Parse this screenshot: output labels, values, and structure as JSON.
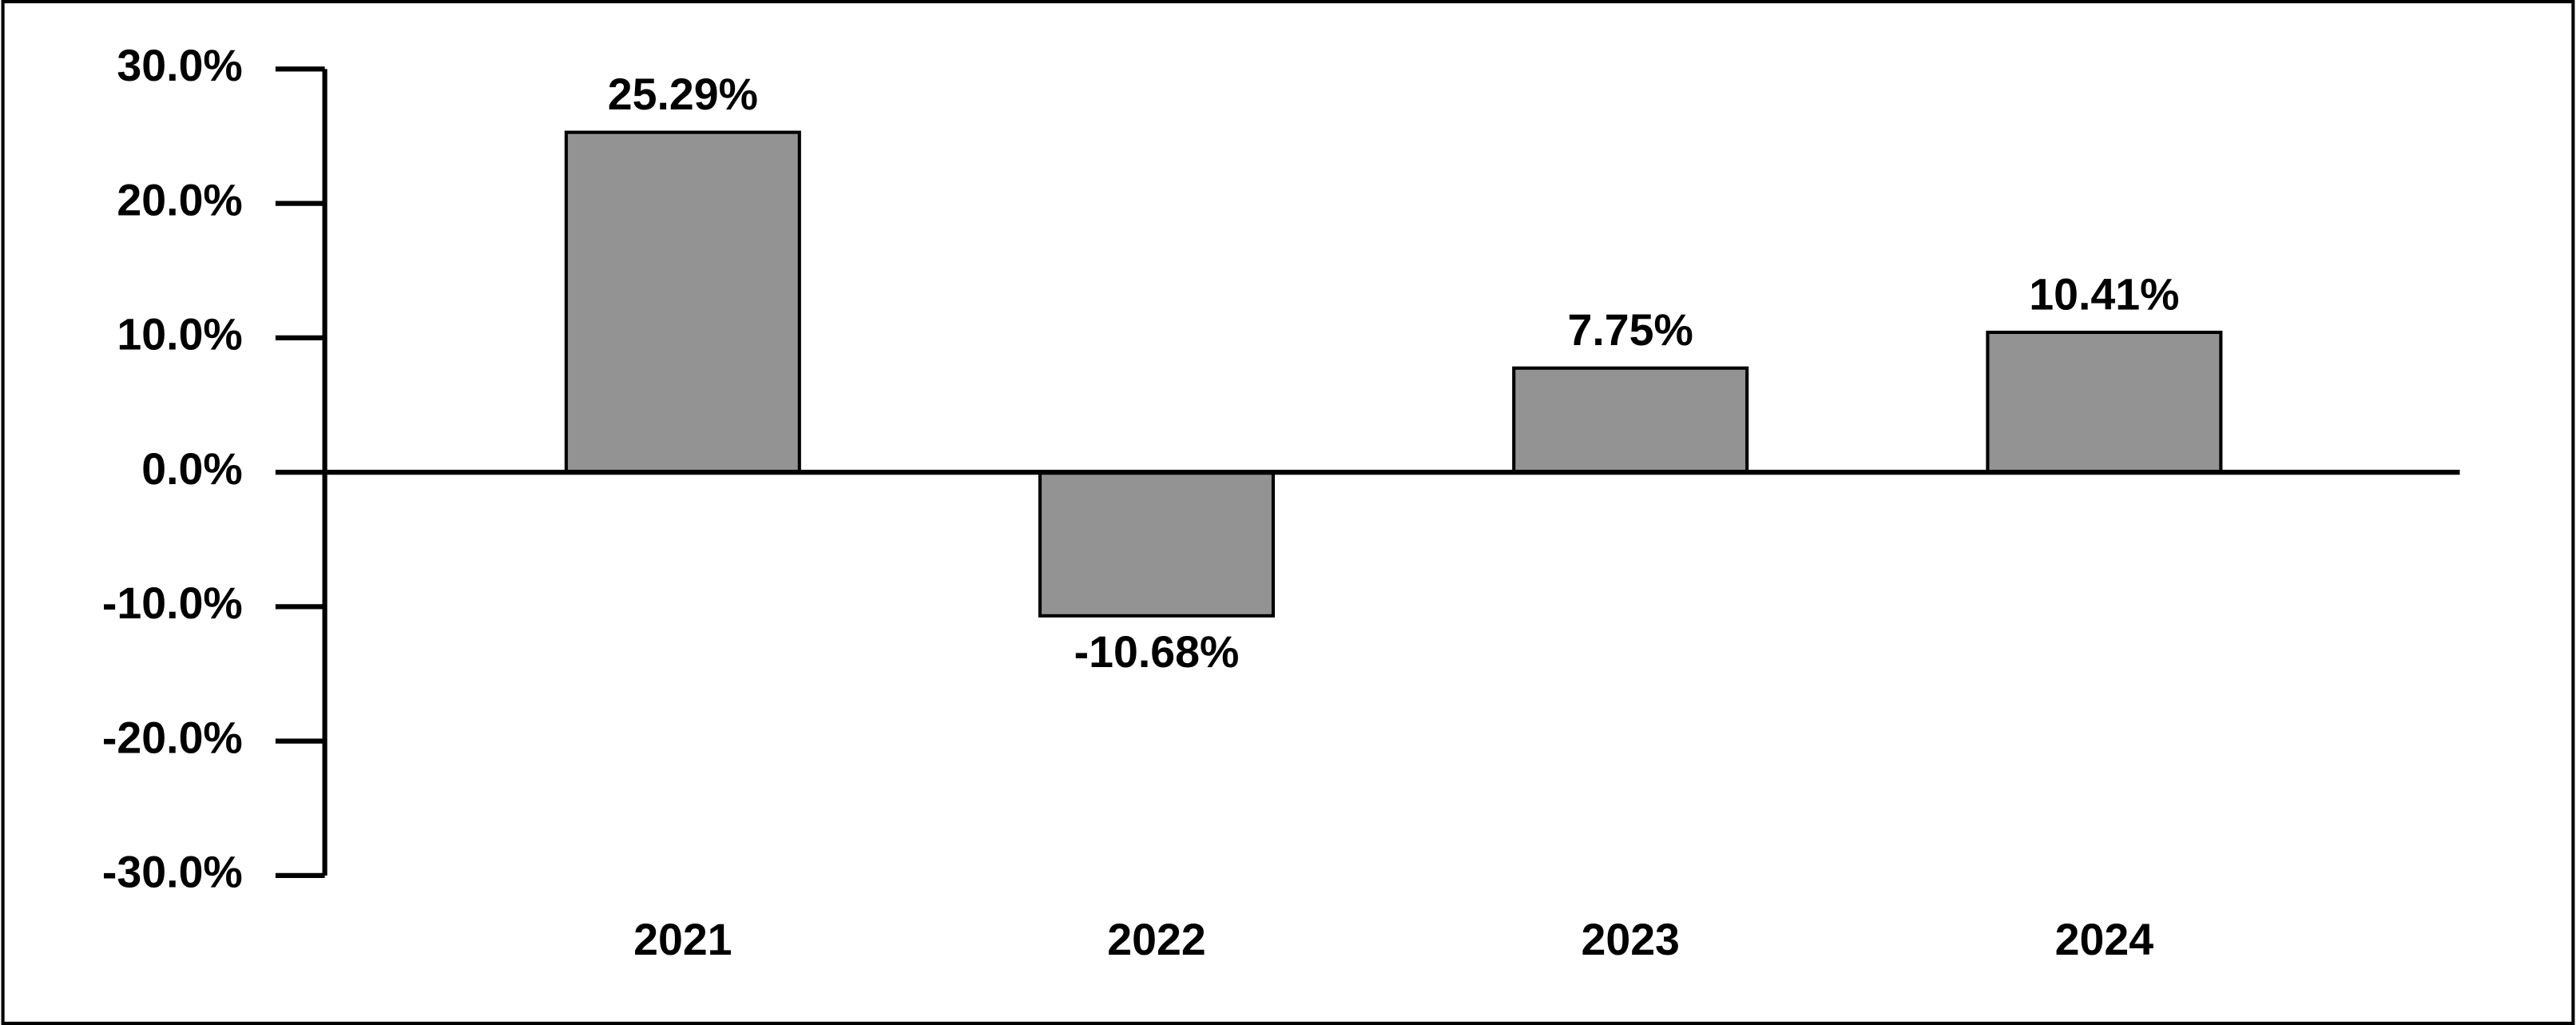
{
  "chart_data": {
    "type": "bar",
    "categories": [
      "2021",
      "2022",
      "2023",
      "2024"
    ],
    "values": [
      25.29,
      -10.68,
      7.75,
      10.41
    ],
    "value_labels": [
      "25.29%",
      "-10.68%",
      "7.75%",
      "10.41%"
    ],
    "color": "#939393",
    "ylim": [
      -30,
      30
    ],
    "yticks": [
      {
        "value": -30,
        "label": "-30.0%"
      },
      {
        "value": -20,
        "label": "-20.0%"
      },
      {
        "value": -10,
        "label": "-10.0%"
      },
      {
        "value": 0,
        "label": "0.0%"
      },
      {
        "value": 10,
        "label": "10.0%"
      },
      {
        "value": 20,
        "label": "20.0%"
      },
      {
        "value": 30,
        "label": "30.0%"
      }
    ]
  }
}
